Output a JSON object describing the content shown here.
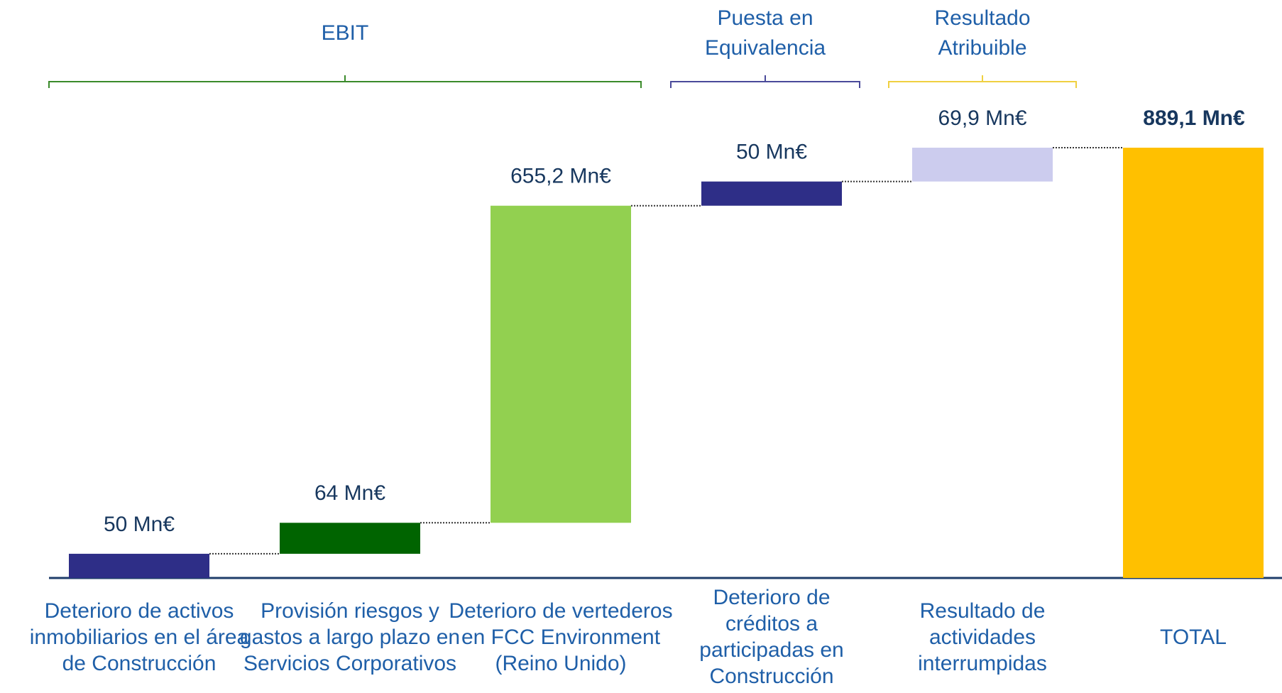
{
  "chart_data": {
    "type": "waterfall",
    "categories": [
      "Deterioro de activos inmobiliarios en el área de Construcción",
      "Provisión riesgos y gastos a largo plazo en Servicios Corporativos",
      "Deterioro de vertederos en FCC Environment (Reino Unido)",
      "Deterioro de créditos a participadas en Construcción",
      "Resultado de actividades interrumpidas",
      "TOTAL"
    ],
    "values": [
      50,
      64,
      655.2,
      50,
      69.9,
      889.1
    ],
    "value_labels": [
      "50 Mn€",
      "64 Mn€",
      "655,2 Mn€",
      "50 Mn€",
      "69,9 Mn€",
      "889,1 Mn€"
    ],
    "colors": [
      "#2e2e87",
      "#006400",
      "#92d050",
      "#2e2e87",
      "#ccccee",
      "#ffc000"
    ],
    "groups": [
      {
        "label": "EBIT",
        "color": "#3a8a2a"
      },
      {
        "label": "Puesta en Equivalencia",
        "color": "#4a4a9a"
      },
      {
        "label": "Resultado Atribuible",
        "color": "#f0d040"
      }
    ]
  }
}
